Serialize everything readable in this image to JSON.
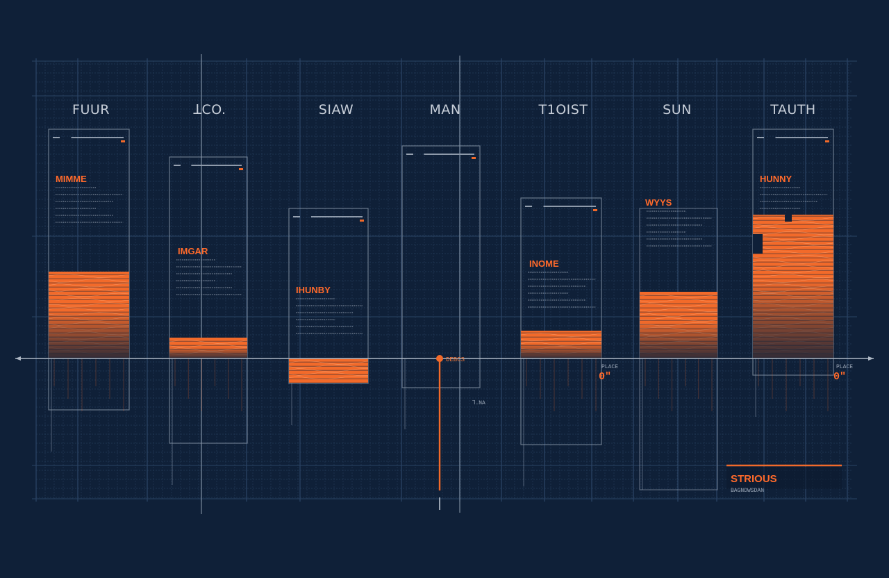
{
  "chart_data": {
    "type": "bar",
    "categories": [
      "FUUR",
      "ꓕCO.",
      "SIAW",
      "MAN",
      "T1OIST",
      "SUN",
      "TAUTH"
    ],
    "values": [
      125,
      30,
      -35,
      0,
      40,
      96,
      207
    ],
    "ylim": [
      -120,
      210
    ],
    "grid": true,
    "bar_color": "#f26a2a",
    "grid_color": "#233a58",
    "card_titles": [
      "MIMME",
      "IMGAR",
      "IHUNBY",
      "",
      "INOME",
      "WYYS",
      "HUNNY"
    ],
    "marker_label": "DEBCS",
    "value_labels": [
      {
        "category": "T1OIST",
        "text": "0\""
      },
      {
        "category": "TAUTH",
        "text": "0\""
      }
    ],
    "value_notes": [
      "PLACE",
      "PLACE"
    ],
    "small_label": "ꓶ.NA",
    "legend": {
      "title": "STRIOUS",
      "subtitle": "BAGNDWSDAN"
    }
  }
}
